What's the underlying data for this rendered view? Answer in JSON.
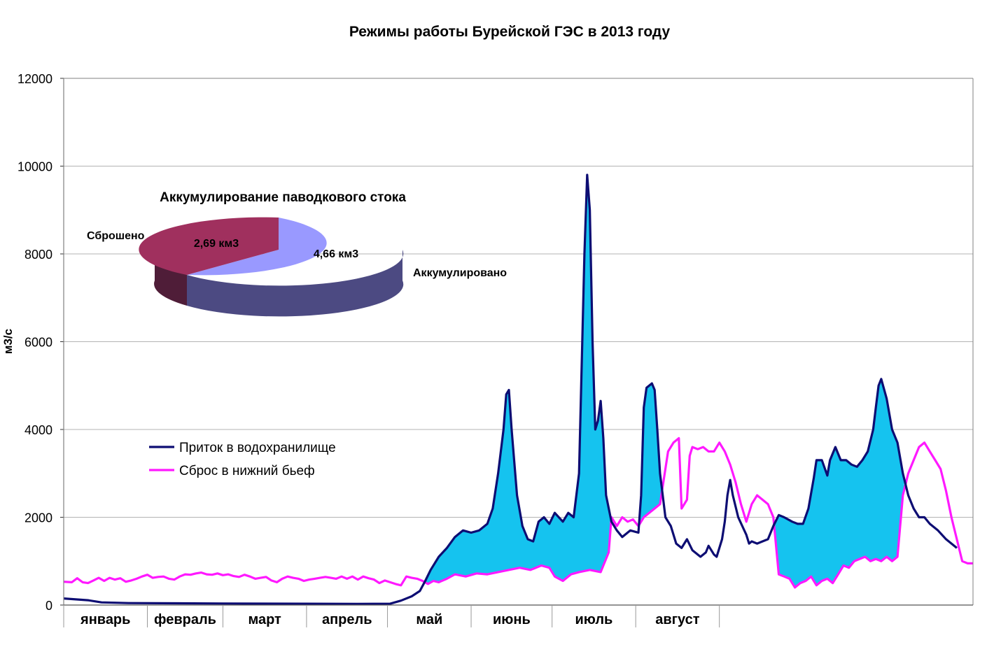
{
  "chart_data": {
    "type": "line",
    "title": "Режимы работы Бурейской ГЭС в 2013 году",
    "xlabel": "",
    "ylabel": "м3/с",
    "ylim": [
      0,
      12000
    ],
    "yticks": [
      "0",
      "2000",
      "4000",
      "6000",
      "8000",
      "10000",
      "12000"
    ],
    "categories": [
      "январь",
      "февраль",
      "март",
      "апрель",
      "май",
      "июнь",
      "июль",
      "август"
    ],
    "x_unit": "day of year (1 = 1 January)",
    "grid": "horizontal",
    "legend_position": "left, inside plot",
    "area_fill": "between series where inflow exceeds discharge",
    "series": [
      {
        "name": "Приток в водохранилище",
        "color": "#0d0d73",
        "points": [
          [
            1,
            150
          ],
          [
            10,
            110
          ],
          [
            15,
            60
          ],
          [
            25,
            45
          ],
          [
            60,
            35
          ],
          [
            90,
            30
          ],
          [
            110,
            25
          ],
          [
            122,
            30
          ],
          [
            126,
            100
          ],
          [
            130,
            200
          ],
          [
            133,
            320
          ],
          [
            135,
            550
          ],
          [
            137,
            800
          ],
          [
            140,
            1100
          ],
          [
            143,
            1300
          ],
          [
            146,
            1550
          ],
          [
            149,
            1700
          ],
          [
            152,
            1650
          ],
          [
            155,
            1700
          ],
          [
            158,
            1850
          ],
          [
            160,
            2200
          ],
          [
            162,
            3000
          ],
          [
            164,
            4000
          ],
          [
            165,
            4800
          ],
          [
            166,
            4900
          ],
          [
            167,
            4000
          ],
          [
            169,
            2500
          ],
          [
            171,
            1800
          ],
          [
            173,
            1500
          ],
          [
            175,
            1450
          ],
          [
            177,
            1900
          ],
          [
            179,
            2000
          ],
          [
            181,
            1850
          ],
          [
            183,
            2100
          ],
          [
            186,
            1900
          ],
          [
            188,
            2100
          ],
          [
            190,
            2000
          ],
          [
            192,
            3000
          ],
          [
            194,
            8000
          ],
          [
            195,
            9800
          ],
          [
            196,
            9000
          ],
          [
            197,
            6000
          ],
          [
            198,
            4000
          ],
          [
            199,
            4200
          ],
          [
            200,
            4650
          ],
          [
            201,
            3800
          ],
          [
            202,
            2500
          ],
          [
            204,
            1900
          ],
          [
            206,
            1700
          ],
          [
            208,
            1550
          ],
          [
            211,
            1700
          ],
          [
            214,
            1650
          ],
          [
            215,
            2500
          ],
          [
            216,
            4500
          ],
          [
            217,
            4950
          ],
          [
            219,
            5050
          ],
          [
            220,
            4900
          ],
          [
            221,
            4000
          ],
          [
            222,
            3000
          ],
          [
            224,
            2000
          ],
          [
            226,
            1800
          ],
          [
            228,
            1400
          ],
          [
            230,
            1300
          ],
          [
            232,
            1500
          ],
          [
            234,
            1250
          ],
          [
            237,
            1100
          ],
          [
            239,
            1200
          ],
          [
            240,
            1350
          ],
          [
            242,
            1150
          ],
          [
            243,
            1100
          ],
          [
            245,
            1500
          ],
          [
            246,
            1900
          ],
          [
            247,
            2500
          ],
          [
            248,
            2850
          ],
          [
            249,
            2500
          ],
          [
            251,
            2000
          ],
          [
            254,
            1600
          ],
          [
            255,
            1400
          ],
          [
            256,
            1450
          ],
          [
            258,
            1400
          ],
          [
            260,
            1450
          ],
          [
            262,
            1500
          ],
          [
            264,
            1800
          ],
          [
            266,
            2050
          ],
          [
            268,
            2000
          ],
          [
            271,
            1900
          ],
          [
            273,
            1850
          ],
          [
            275,
            1850
          ],
          [
            277,
            2200
          ],
          [
            279,
            2900
          ],
          [
            280,
            3300
          ],
          [
            282,
            3300
          ],
          [
            284,
            2950
          ],
          [
            285,
            3300
          ],
          [
            287,
            3600
          ],
          [
            289,
            3300
          ],
          [
            291,
            3300
          ],
          [
            293,
            3200
          ],
          [
            295,
            3150
          ],
          [
            297,
            3300
          ],
          [
            299,
            3500
          ],
          [
            301,
            4000
          ],
          [
            302,
            4500
          ],
          [
            303,
            5000
          ],
          [
            304,
            5150
          ],
          [
            306,
            4700
          ],
          [
            308,
            4000
          ],
          [
            310,
            3700
          ],
          [
            312,
            3000
          ],
          [
            314,
            2500
          ],
          [
            316,
            2200
          ],
          [
            318,
            2000
          ],
          [
            320,
            2000
          ],
          [
            322,
            1850
          ],
          [
            325,
            1700
          ],
          [
            328,
            1500
          ],
          [
            330,
            1400
          ],
          [
            332,
            1300
          ]
        ]
      },
      {
        "name": "Сброс в нижний бьеф",
        "color": "#ff19ff",
        "points": [
          [
            1,
            530
          ],
          [
            4,
            520
          ],
          [
            6,
            610
          ],
          [
            8,
            520
          ],
          [
            10,
            500
          ],
          [
            12,
            560
          ],
          [
            14,
            620
          ],
          [
            16,
            550
          ],
          [
            18,
            620
          ],
          [
            20,
            580
          ],
          [
            22,
            610
          ],
          [
            24,
            530
          ],
          [
            26,
            560
          ],
          [
            28,
            600
          ],
          [
            30,
            650
          ],
          [
            32,
            690
          ],
          [
            34,
            620
          ],
          [
            36,
            640
          ],
          [
            38,
            650
          ],
          [
            40,
            600
          ],
          [
            42,
            580
          ],
          [
            44,
            650
          ],
          [
            46,
            700
          ],
          [
            48,
            690
          ],
          [
            50,
            720
          ],
          [
            52,
            740
          ],
          [
            54,
            700
          ],
          [
            56,
            690
          ],
          [
            58,
            720
          ],
          [
            60,
            680
          ],
          [
            62,
            700
          ],
          [
            64,
            660
          ],
          [
            66,
            640
          ],
          [
            68,
            690
          ],
          [
            70,
            650
          ],
          [
            72,
            600
          ],
          [
            74,
            620
          ],
          [
            76,
            640
          ],
          [
            78,
            560
          ],
          [
            80,
            520
          ],
          [
            82,
            600
          ],
          [
            84,
            650
          ],
          [
            86,
            620
          ],
          [
            88,
            600
          ],
          [
            90,
            550
          ],
          [
            92,
            580
          ],
          [
            94,
            600
          ],
          [
            96,
            620
          ],
          [
            98,
            640
          ],
          [
            100,
            620
          ],
          [
            102,
            600
          ],
          [
            104,
            650
          ],
          [
            106,
            600
          ],
          [
            108,
            650
          ],
          [
            110,
            580
          ],
          [
            112,
            650
          ],
          [
            114,
            610
          ],
          [
            116,
            580
          ],
          [
            118,
            500
          ],
          [
            120,
            560
          ],
          [
            122,
            520
          ],
          [
            124,
            480
          ],
          [
            126,
            450
          ],
          [
            128,
            650
          ],
          [
            130,
            620
          ],
          [
            132,
            600
          ],
          [
            134,
            550
          ],
          [
            136,
            480
          ],
          [
            138,
            550
          ],
          [
            140,
            520
          ],
          [
            143,
            600
          ],
          [
            146,
            700
          ],
          [
            150,
            650
          ],
          [
            154,
            720
          ],
          [
            158,
            700
          ],
          [
            162,
            750
          ],
          [
            166,
            800
          ],
          [
            170,
            850
          ],
          [
            174,
            800
          ],
          [
            178,
            900
          ],
          [
            181,
            850
          ],
          [
            183,
            650
          ],
          [
            186,
            550
          ],
          [
            189,
            700
          ],
          [
            192,
            750
          ],
          [
            196,
            800
          ],
          [
            200,
            750
          ],
          [
            203,
            1200
          ],
          [
            204,
            2000
          ],
          [
            206,
            1800
          ],
          [
            208,
            2000
          ],
          [
            210,
            1900
          ],
          [
            212,
            1950
          ],
          [
            214,
            1800
          ],
          [
            216,
            2000
          ],
          [
            218,
            2100
          ],
          [
            220,
            2200
          ],
          [
            222,
            2300
          ],
          [
            223,
            2700
          ],
          [
            225,
            3500
          ],
          [
            227,
            3700
          ],
          [
            229,
            3800
          ],
          [
            230,
            2200
          ],
          [
            232,
            2400
          ],
          [
            233,
            3400
          ],
          [
            234,
            3600
          ],
          [
            236,
            3550
          ],
          [
            238,
            3600
          ],
          [
            240,
            3500
          ],
          [
            242,
            3500
          ],
          [
            244,
            3700
          ],
          [
            246,
            3500
          ],
          [
            248,
            3200
          ],
          [
            250,
            2800
          ],
          [
            252,
            2300
          ],
          [
            254,
            1900
          ],
          [
            256,
            2300
          ],
          [
            258,
            2500
          ],
          [
            260,
            2400
          ],
          [
            262,
            2300
          ],
          [
            264,
            2000
          ],
          [
            266,
            700
          ],
          [
            268,
            650
          ],
          [
            270,
            600
          ],
          [
            272,
            400
          ],
          [
            274,
            500
          ],
          [
            276,
            550
          ],
          [
            278,
            650
          ],
          [
            280,
            450
          ],
          [
            282,
            550
          ],
          [
            284,
            600
          ],
          [
            286,
            500
          ],
          [
            288,
            700
          ],
          [
            290,
            900
          ],
          [
            292,
            850
          ],
          [
            294,
            1000
          ],
          [
            296,
            1050
          ],
          [
            298,
            1100
          ],
          [
            300,
            1000
          ],
          [
            302,
            1050
          ],
          [
            304,
            1000
          ],
          [
            306,
            1100
          ],
          [
            308,
            1000
          ],
          [
            310,
            1100
          ],
          [
            312,
            2500
          ],
          [
            314,
            3000
          ],
          [
            316,
            3300
          ],
          [
            318,
            3600
          ],
          [
            320,
            3700
          ],
          [
            322,
            3500
          ],
          [
            324,
            3300
          ],
          [
            326,
            3100
          ],
          [
            328,
            2600
          ],
          [
            330,
            2000
          ],
          [
            332,
            1500
          ],
          [
            334,
            1000
          ],
          [
            336,
            950
          ],
          [
            338,
            950
          ]
        ]
      }
    ],
    "inset_pie": {
      "type": "pie",
      "title": "Аккумулирование паводкового стока",
      "slices": [
        {
          "label": "Сброшено",
          "value": 2.69,
          "value_label": "2,69 км3",
          "color": "#a0305e"
        },
        {
          "label": "Аккумулировано",
          "value": 4.66,
          "value_label": "4,66 км3",
          "color": "#9999ff"
        }
      ],
      "fill_color": "#15c3ef"
    }
  }
}
